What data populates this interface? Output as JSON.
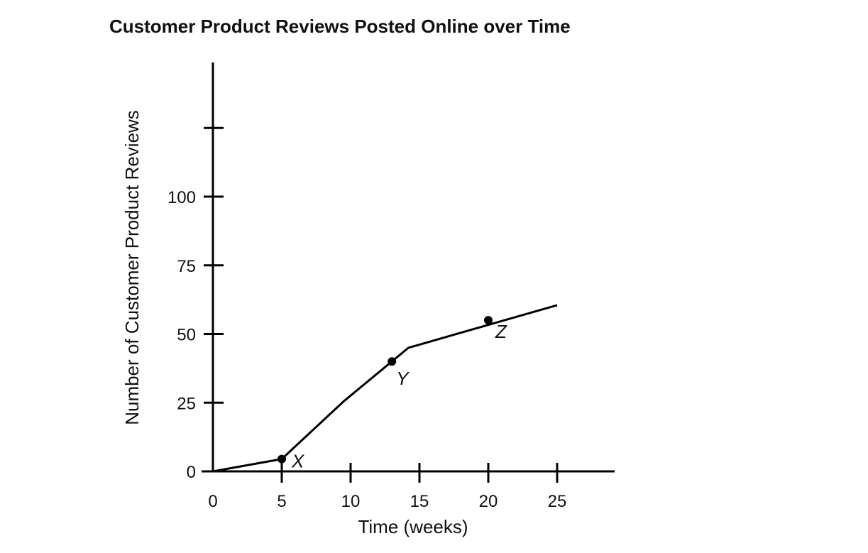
{
  "chart_data": {
    "type": "line",
    "title": "Customer Product Reviews Posted Online over Time",
    "xlabel": "Time (weeks)",
    "ylabel": "Number of Customer Product Reviews",
    "xlim": [
      0,
      29
    ],
    "ylim": [
      0,
      150
    ],
    "x_ticks": [
      0,
      5,
      10,
      15,
      20,
      25
    ],
    "y_ticks": [
      0,
      25,
      50,
      75,
      100,
      125
    ],
    "x_tick_labels": [
      "0",
      "5",
      "10",
      "15",
      "20",
      "25"
    ],
    "y_tick_labels": [
      "0",
      "25",
      "50",
      "75",
      "100",
      ""
    ],
    "grid": false,
    "series": [
      {
        "x": [
          0,
          5,
          9.5,
          14.2,
          25
        ],
        "y": [
          0,
          4.5,
          25.5,
          45,
          60.5
        ]
      }
    ],
    "points": [
      {
        "label": "X",
        "x": 5,
        "y": 4.5
      },
      {
        "label": "Y",
        "x": 13,
        "y": 40
      },
      {
        "label": "Z",
        "x": 20,
        "y": 55
      }
    ]
  }
}
